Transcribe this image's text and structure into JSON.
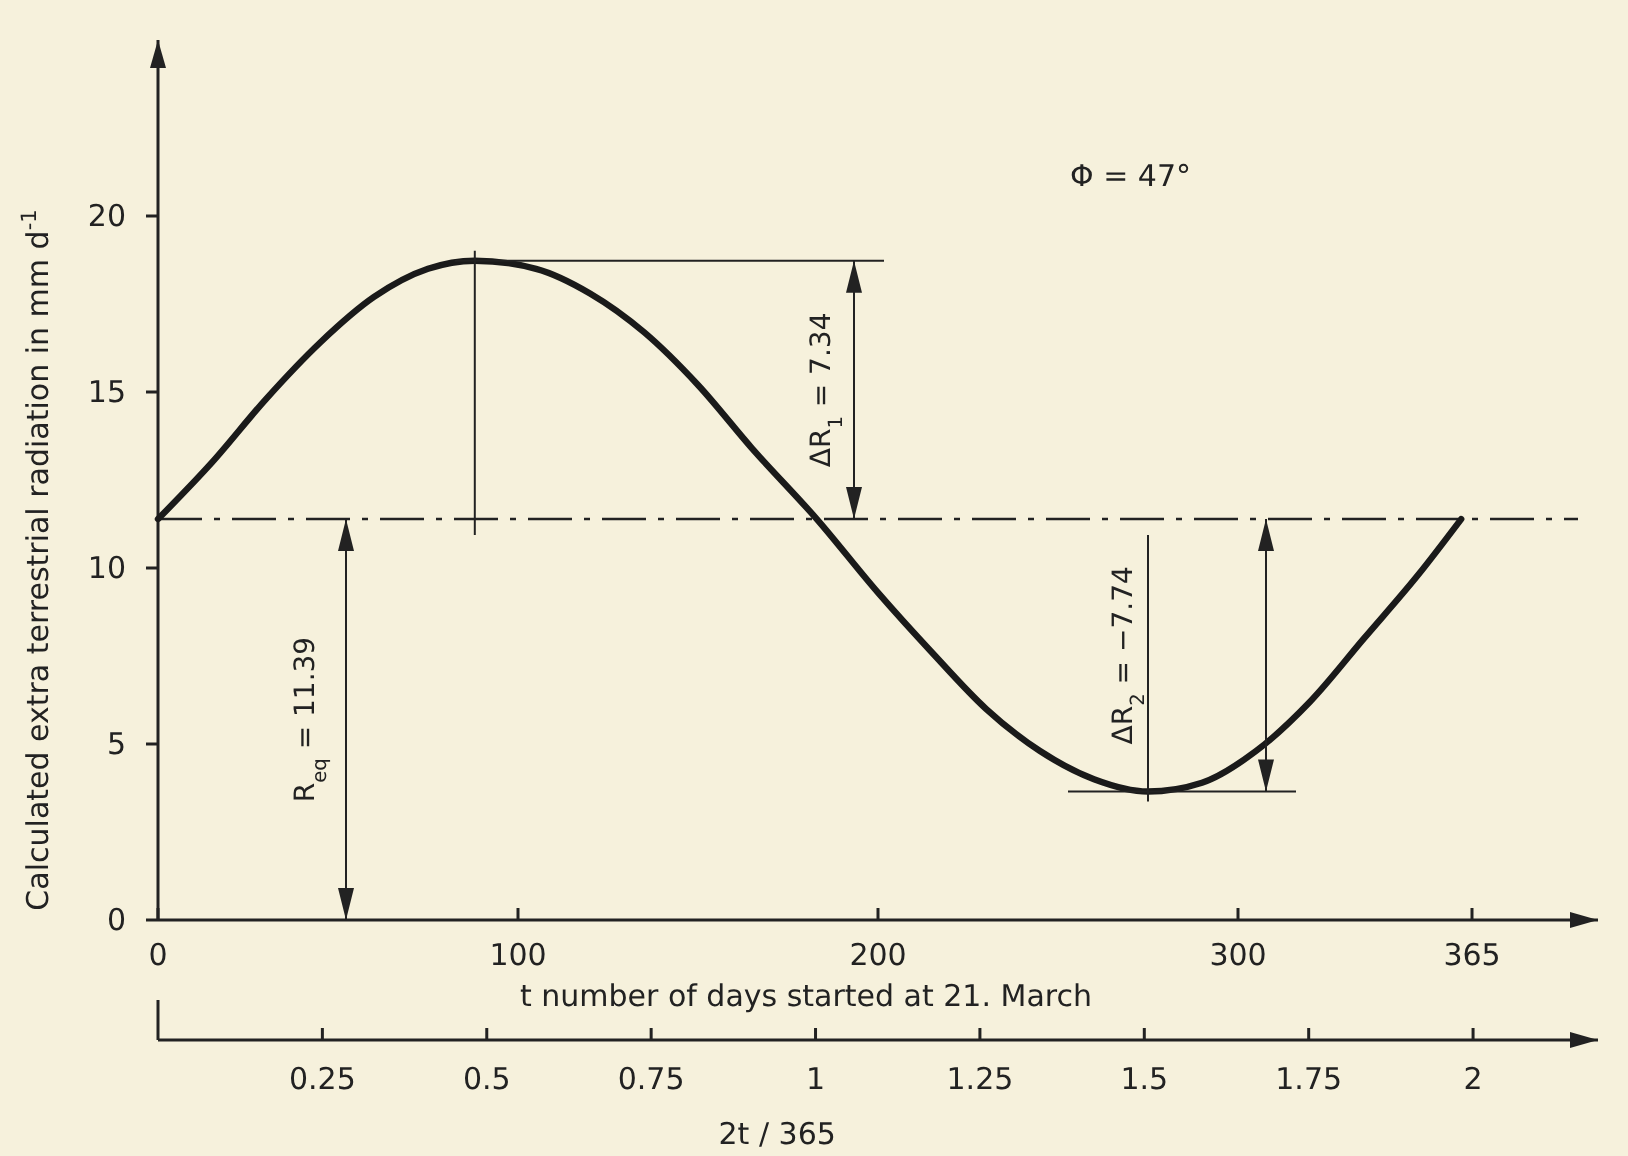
{
  "chart_data": {
    "type": "line",
    "xlabel": "t number of days started at 21. March",
    "ylabel": "Calculated extra terrestrial radiation in mm d$^{-1}$",
    "x2label": "2t / 365",
    "x": [
      0,
      15,
      30,
      45,
      60,
      75,
      88,
      105,
      120,
      135,
      150,
      165,
      183,
      200,
      215,
      230,
      245,
      260,
      275,
      290,
      305,
      320,
      335,
      350,
      362
    ],
    "series": [
      {
        "color": "#1a1a1a",
        "values": [
          11.39,
          13.0,
          14.8,
          16.4,
          17.7,
          18.5,
          18.73,
          18.5,
          17.8,
          16.7,
          15.2,
          13.4,
          11.39,
          9.3,
          7.6,
          6.0,
          4.8,
          4.0,
          3.65,
          3.9,
          4.8,
          6.2,
          8.0,
          9.8,
          11.39
        ]
      }
    ],
    "xlim": [
      0,
      400
    ],
    "xticks": [
      0,
      100,
      200,
      300,
      365
    ],
    "x2lim": [
      0,
      2.19
    ],
    "x2ticks": [
      0.25,
      0.5,
      0.75,
      1.0,
      1.25,
      1.5,
      1.75,
      2.0
    ],
    "ylim": [
      0,
      25
    ],
    "yticks": [
      0,
      5,
      10,
      15,
      20
    ],
    "ref_lines": [
      {
        "axis": "y",
        "value": 11.39
      }
    ],
    "annotations": [
      "R$_{eq}$ = 11.39",
      "ΔR$_{1}$ = 7.34",
      "ΔR$_{2}$ = −7.74",
      "Φ = 47°"
    ],
    "grid": false,
    "marker": "none",
    "line_style": "solid"
  }
}
